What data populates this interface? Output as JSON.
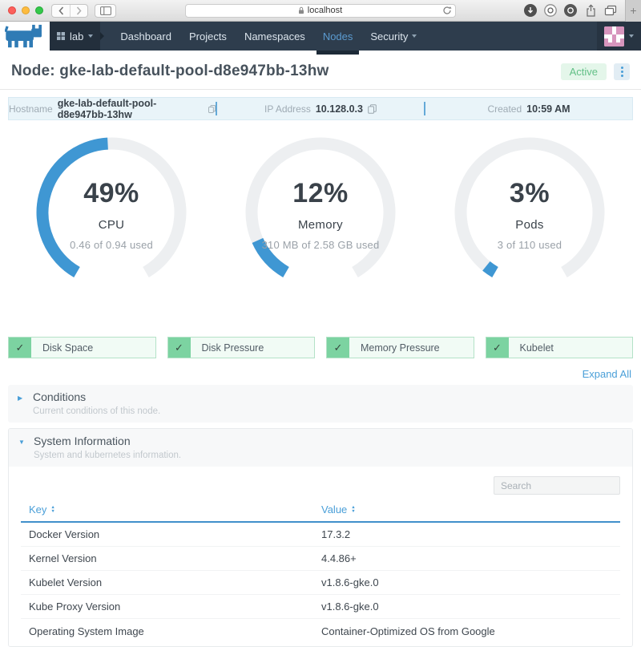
{
  "colors": {
    "accent_blue": "#4a9fd8",
    "gauge_blue": "#3f97d3",
    "gauge_track": "#edeff1",
    "success_green": "#7cd3a1",
    "status_badge_green": "#63c087",
    "navbar_bg": "#2e3d4d"
  },
  "browser": {
    "url": "localhost"
  },
  "navbar": {
    "environment": "lab",
    "items": [
      {
        "label": "Dashboard",
        "active": false
      },
      {
        "label": "Projects",
        "active": false
      },
      {
        "label": "Namespaces",
        "active": false
      },
      {
        "label": "Nodes",
        "active": true
      },
      {
        "label": "Security",
        "active": false,
        "dropdown": true
      }
    ],
    "avatar_pattern": [
      "PPWPP",
      "PPWPP",
      "WWPWW",
      "PWPWP",
      "PPPPP"
    ]
  },
  "page": {
    "title": "Node: gke-lab-default-pool-d8e947bb-13hw",
    "status": "Active",
    "info": [
      {
        "label": "Hostname",
        "value": "gke-lab-default-pool-d8e947bb-13hw"
      },
      {
        "label": "IP Address",
        "value": "10.128.0.3"
      },
      {
        "label": "Created",
        "value": "10:59 AM"
      }
    ]
  },
  "chart_data": {
    "type": "gauge",
    "arc_span_degrees": 300,
    "gauges": [
      {
        "percent": 49,
        "label": "CPU",
        "detail": "0.46 of 0.94 used"
      },
      {
        "percent": 12,
        "label": "Memory",
        "detail": "310 MB of 2.58 GB used"
      },
      {
        "percent": 3,
        "label": "Pods",
        "detail": "3 of 110 used"
      }
    ]
  },
  "checks": [
    "Disk Space",
    "Disk Pressure",
    "Memory Pressure",
    "Kubelet"
  ],
  "expand_all": "Expand All",
  "sections": [
    {
      "title": "Conditions",
      "subtitle": "Current conditions of this node.",
      "expanded": false
    },
    {
      "title": "System Information",
      "subtitle": "System and kubernetes information.",
      "expanded": true
    }
  ],
  "table": {
    "search_placeholder": "Search",
    "columns": [
      "Key",
      "Value"
    ],
    "rows": [
      {
        "key": "Docker Version",
        "value": "17.3.2"
      },
      {
        "key": "Kernel Version",
        "value": "4.4.86+"
      },
      {
        "key": "Kubelet Version",
        "value": "v1.8.6-gke.0"
      },
      {
        "key": "Kube Proxy Version",
        "value": "v1.8.6-gke.0"
      },
      {
        "key": "Operating System Image",
        "value": "Container-Optimized OS from Google"
      }
    ]
  }
}
